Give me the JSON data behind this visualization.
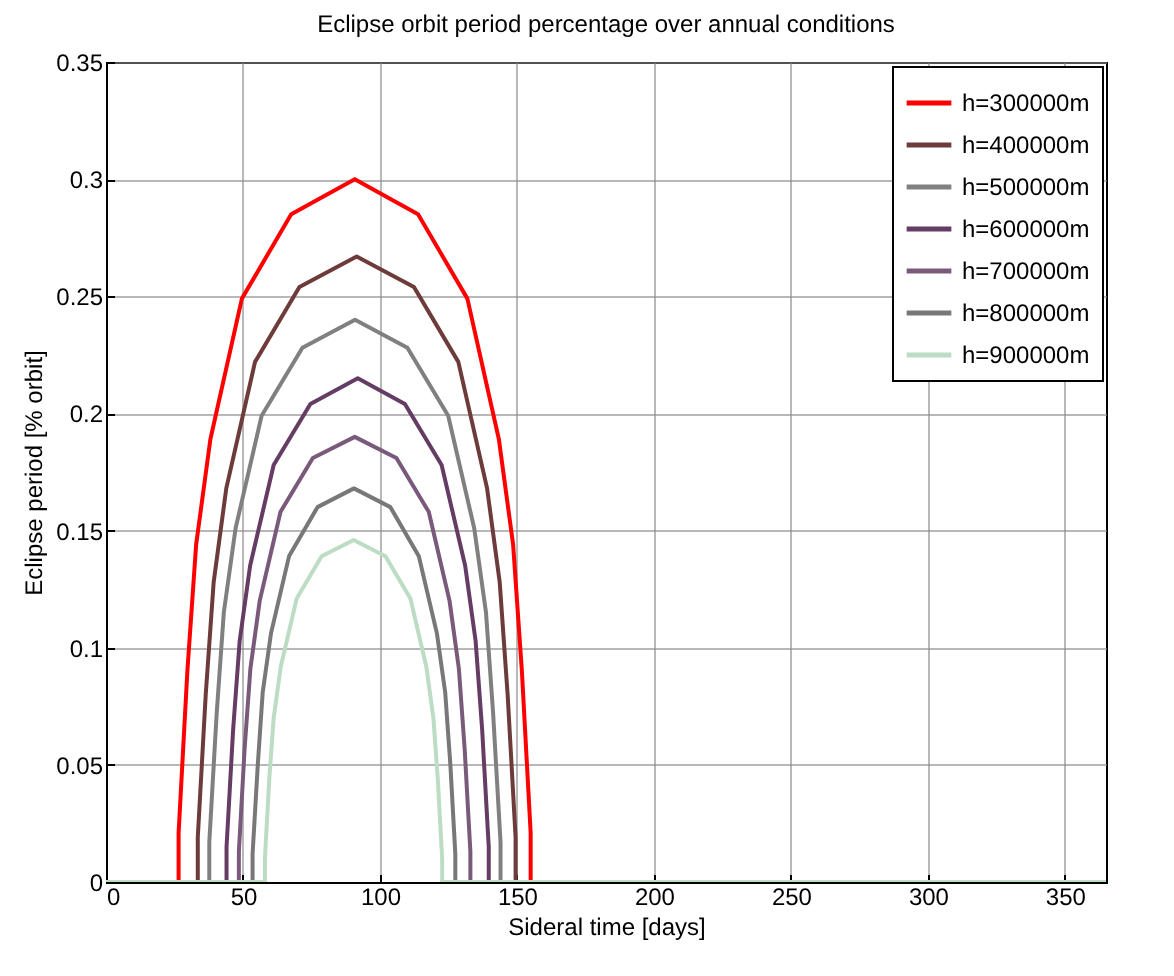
{
  "chart_data": {
    "type": "line",
    "title": "Eclipse orbit period percentage over annual conditions",
    "xlabel": "Sideral time [days]",
    "ylabel": "Eclipse period [% orbit]",
    "xlim": [
      0,
      365
    ],
    "xticks": [
      0,
      50,
      100,
      150,
      200,
      250,
      300,
      350
    ],
    "ylim": [
      0,
      0.35
    ],
    "yticks": [
      0,
      0.05,
      0.1,
      0.15,
      0.2,
      0.25,
      0.3,
      0.35
    ],
    "grid": true,
    "legend": "top right",
    "marker": "none",
    "line_style": "solid",
    "series": [
      {
        "name": "h=300000m",
        "color": "#ff0000",
        "x": [
          0,
          26.5,
          26.5,
          29.7,
          32.9,
          38.1,
          49.6,
          67.6,
          90.8,
          113.9,
          131.9,
          143.4,
          148.6,
          151.8,
          155.0,
          155.0,
          365
        ],
        "values": [
          0,
          0,
          0.021,
          0.09,
          0.144,
          0.189,
          0.249,
          0.285,
          0.3,
          0.285,
          0.249,
          0.189,
          0.144,
          0.09,
          0.021,
          0,
          0
        ]
      },
      {
        "name": "h=400000m",
        "color": "#6e3b3b",
        "x": [
          0,
          33.5,
          33.5,
          36.4,
          39.3,
          43.9,
          54.4,
          70.6,
          91.5,
          112.4,
          128.6,
          139.1,
          143.7,
          146.6,
          149.5,
          149.5,
          365
        ],
        "values": [
          0,
          0,
          0.019,
          0.08,
          0.128,
          0.168,
          0.222,
          0.254,
          0.267,
          0.254,
          0.222,
          0.168,
          0.128,
          0.08,
          0.019,
          0,
          0
        ]
      },
      {
        "name": "h=500000m",
        "color": "#808080",
        "x": [
          0,
          37.7,
          37.7,
          40.4,
          43.0,
          47.3,
          56.8,
          71.7,
          90.9,
          110.0,
          124.9,
          134.4,
          138.7,
          141.3,
          144.0,
          144.0,
          365
        ],
        "values": [
          0,
          0,
          0.017,
          0.072,
          0.115,
          0.151,
          0.199,
          0.228,
          0.24,
          0.228,
          0.199,
          0.151,
          0.115,
          0.072,
          0.017,
          0,
          0
        ]
      },
      {
        "name": "h=600000m",
        "color": "#643c64",
        "x": [
          0,
          44.0,
          44.0,
          46.4,
          48.8,
          52.6,
          61.2,
          74.6,
          91.9,
          109.1,
          122.5,
          131.1,
          134.9,
          137.3,
          139.7,
          139.7,
          365
        ],
        "values": [
          0,
          0,
          0.015,
          0.065,
          0.103,
          0.135,
          0.178,
          0.204,
          0.215,
          0.204,
          0.178,
          0.135,
          0.103,
          0.065,
          0.015,
          0,
          0
        ]
      },
      {
        "name": "h=700000m",
        "color": "#7a5a7a",
        "x": [
          0,
          48.5,
          48.5,
          50.6,
          52.7,
          56.1,
          63.7,
          75.5,
          90.8,
          106.0,
          117.8,
          125.4,
          128.8,
          130.9,
          133.0,
          133.0,
          365
        ],
        "values": [
          0,
          0,
          0.013,
          0.057,
          0.091,
          0.12,
          0.158,
          0.181,
          0.19,
          0.181,
          0.158,
          0.12,
          0.091,
          0.057,
          0.013,
          0,
          0
        ]
      },
      {
        "name": "h=800000m",
        "color": "#787878",
        "x": [
          0,
          53.5,
          53.5,
          55.4,
          57.2,
          60.2,
          66.8,
          77.2,
          90.5,
          103.8,
          114.2,
          120.8,
          123.8,
          125.7,
          127.5,
          127.5,
          365
        ],
        "values": [
          0,
          0,
          0.012,
          0.05,
          0.081,
          0.106,
          0.139,
          0.16,
          0.168,
          0.16,
          0.139,
          0.106,
          0.081,
          0.05,
          0.012,
          0,
          0
        ]
      },
      {
        "name": "h=900000m",
        "color": "#bcdcc4",
        "x": [
          0,
          58.0,
          58.0,
          59.6,
          61.2,
          63.8,
          69.6,
          78.7,
          90.4,
          102.0,
          111.1,
          116.9,
          119.5,
          121.1,
          122.7,
          122.7,
          365
        ],
        "values": [
          0,
          0,
          0.01,
          0.044,
          0.07,
          0.092,
          0.121,
          0.139,
          0.146,
          0.139,
          0.121,
          0.092,
          0.07,
          0.044,
          0.01,
          0,
          0
        ]
      }
    ]
  }
}
